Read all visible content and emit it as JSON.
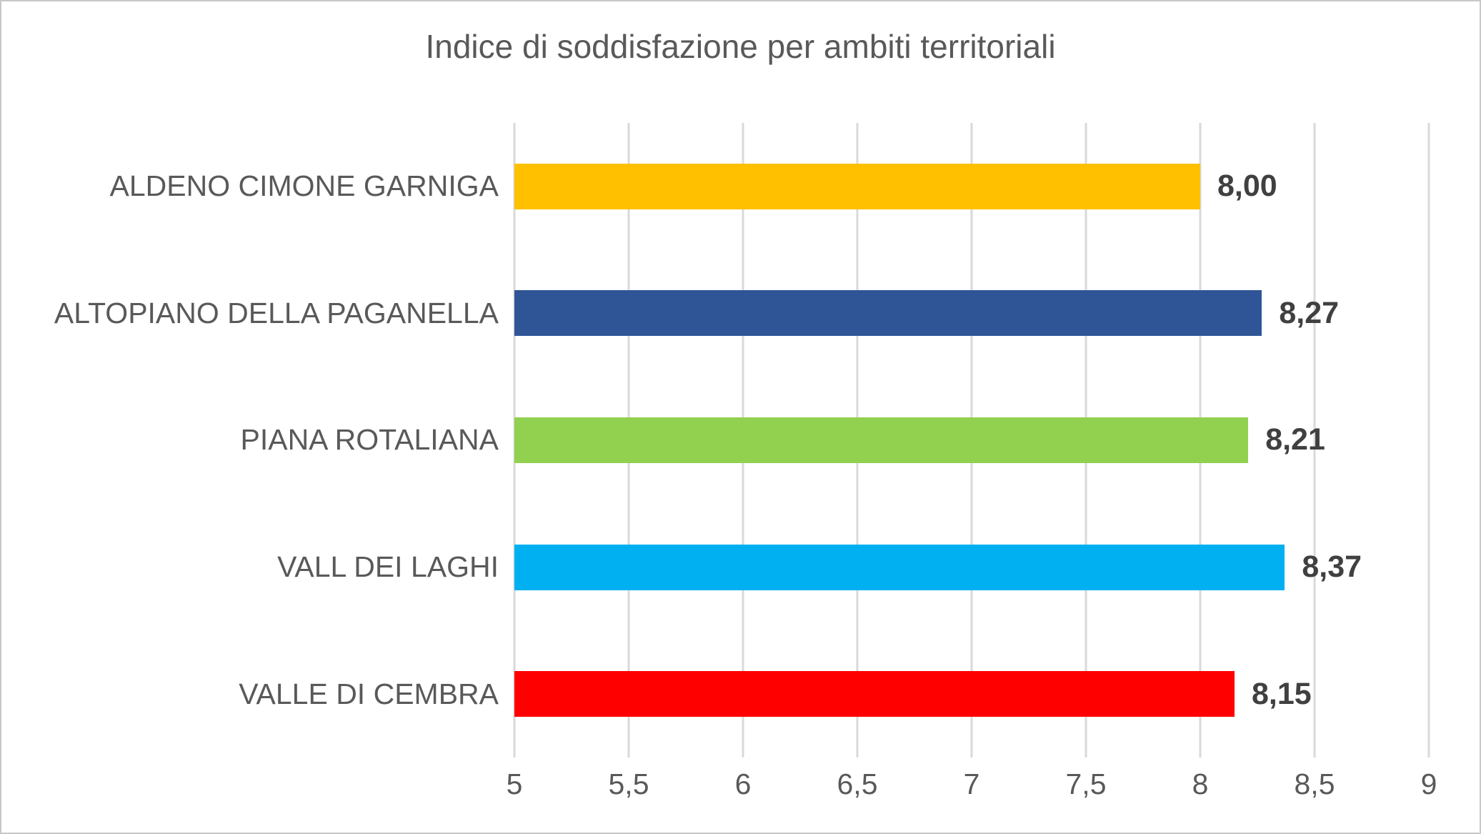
{
  "chart_data": {
    "type": "bar",
    "orientation": "horizontal",
    "title": "Indice di soddisfazione per ambiti territoriali",
    "categories": [
      "ALDENO CIMONE GARNIGA",
      "ALTOPIANO DELLA PAGANELLA",
      "PIANA ROTALIANA",
      "VALL DEI LAGHI",
      "VALLE DI CEMBRA"
    ],
    "values": [
      8.0,
      8.27,
      8.21,
      8.37,
      8.15
    ],
    "value_labels": [
      "8,00",
      "8,27",
      "8,21",
      "8,37",
      "8,15"
    ],
    "bar_colors": [
      "#FFC000",
      "#2F5597",
      "#92D050",
      "#00B0F0",
      "#FF0000"
    ],
    "xlim": [
      5,
      9
    ],
    "x_tick_step": 0.5,
    "x_tick_labels": [
      "5",
      "5,5",
      "6",
      "6,5",
      "7",
      "7,5",
      "8",
      "8,5",
      "9"
    ],
    "grid": "vertical-only",
    "legend": "none",
    "colors": {
      "gridline": "#D9D9D9",
      "title_text": "#595959",
      "category_text": "#595959",
      "tick_text": "#595959",
      "value_text": "#404040",
      "background": "#FFFFFF",
      "frame_border": "#C7C7C7"
    }
  }
}
